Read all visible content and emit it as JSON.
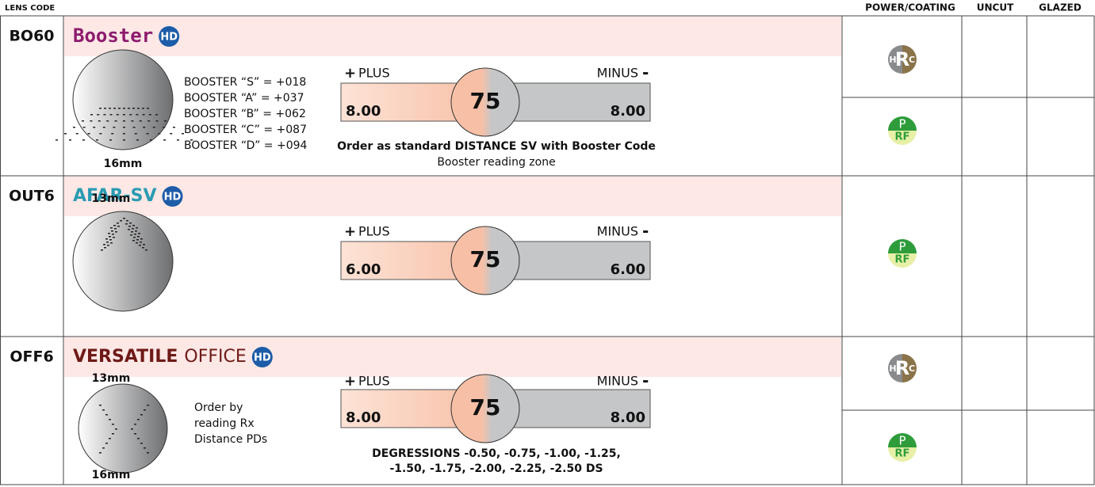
{
  "header": {
    "lens_code": "LENS CODE",
    "power_coating": "POWER/COATING",
    "uncut": "UNCUT",
    "glazed": "GLAZED"
  },
  "rows": [
    {
      "code": "BO60",
      "name": [
        "Booster"
      ],
      "hd": "HD",
      "sizes": [
        "16mm"
      ],
      "notes": [
        "BOOSTER “S” = +018",
        "BOOSTER “A” = +037",
        "BOOSTER “B” = +062",
        "BOOSTER “C” = +087",
        "BOOSTER “D” = +094"
      ],
      "plus_sign": "+",
      "plus": "PLUS",
      "minus": "MINUS",
      "minus_sign": "-",
      "plus_value": "8.00",
      "center": "75",
      "minus_value": "8.00",
      "caption": [
        "Order as standard DISTANCE SV with Booster Code",
        "Booster reading zone"
      ],
      "coatings": [
        [
          "H",
          "R",
          "C"
        ],
        [
          "P",
          "RF"
        ]
      ]
    },
    {
      "code": "OUT6",
      "name": [
        "AFAR-SV"
      ],
      "hd": "HD",
      "sizes": [
        "13mm"
      ],
      "notes": [],
      "plus_sign": "+",
      "plus": "PLUS",
      "minus": "MINUS",
      "minus_sign": "-",
      "plus_value": "6.00",
      "center": "75",
      "minus_value": "6.00",
      "caption": [],
      "coatings": [
        [
          "P",
          "RF"
        ]
      ]
    },
    {
      "code": "OFF6",
      "name": [
        "VERSATILE",
        "OFFICE"
      ],
      "hd": "HD",
      "sizes": [
        "13mm",
        "16mm"
      ],
      "notes": [
        "Order by",
        "reading Rx",
        "Distance PDs"
      ],
      "plus_sign": "+",
      "plus": "PLUS",
      "minus": "MINUS",
      "minus_sign": "-",
      "plus_value": "8.00",
      "center": "75",
      "minus_value": "8.00",
      "caption": [
        "DEGRESSIONS -0.50, -0.75, -1.00, -1.25,",
        "-1.50, -1.75, -2.00, -2.25, -2.50 DS"
      ],
      "coatings": [
        [
          "H",
          "R",
          "C"
        ],
        [
          "P",
          "RF"
        ]
      ]
    }
  ]
}
